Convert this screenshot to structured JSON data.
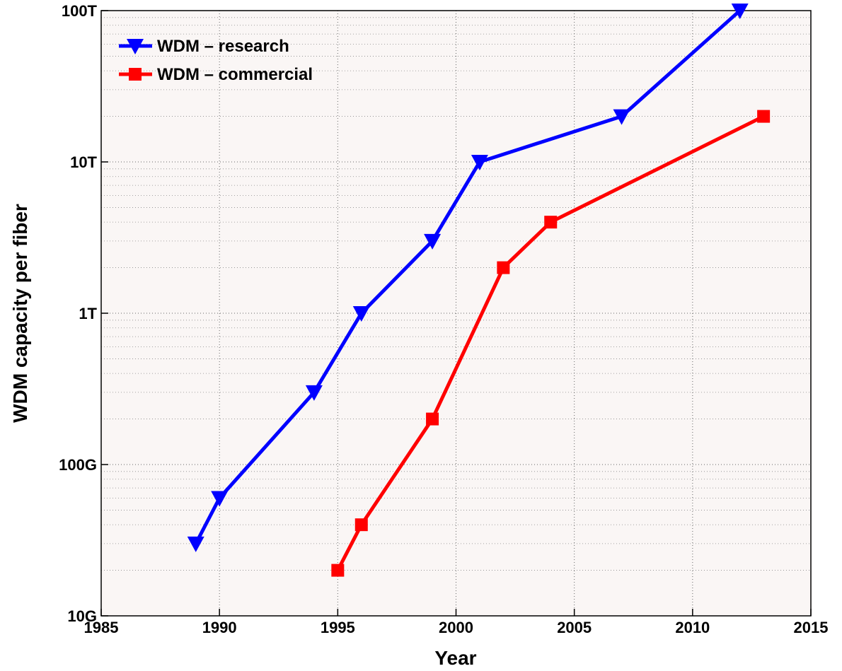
{
  "chart_data": {
    "type": "line",
    "xlabel": "Year",
    "ylabel": "WDM capacity per fiber",
    "xlim": [
      1985,
      2015
    ],
    "xticks": [
      1985,
      1990,
      1995,
      2000,
      2005,
      2010,
      2015
    ],
    "ylim": [
      10,
      100000
    ],
    "yscale": "log",
    "yticks": [
      {
        "value": 10,
        "label": "10G"
      },
      {
        "value": 100,
        "label": "100G"
      },
      {
        "value": 1000,
        "label": "1T"
      },
      {
        "value": 10000,
        "label": "10T"
      },
      {
        "value": 100000,
        "label": "100T"
      }
    ],
    "grid": true,
    "legend": "upper left",
    "series": [
      {
        "name": "WDM – research",
        "color": "#0000ff",
        "marker": "triangle-down",
        "x": [
          1989,
          1990,
          1994,
          1996,
          1999,
          2001,
          2007,
          2012
        ],
        "values": [
          30,
          60,
          300,
          1000,
          3000,
          10000,
          20000,
          100000
        ]
      },
      {
        "name": "WDM – commercial",
        "color": "#ff0000",
        "marker": "square",
        "x": [
          1995,
          1996,
          1999,
          2002,
          2004,
          2013
        ],
        "values": [
          20,
          40,
          200,
          2000,
          4000,
          20000
        ]
      }
    ]
  }
}
